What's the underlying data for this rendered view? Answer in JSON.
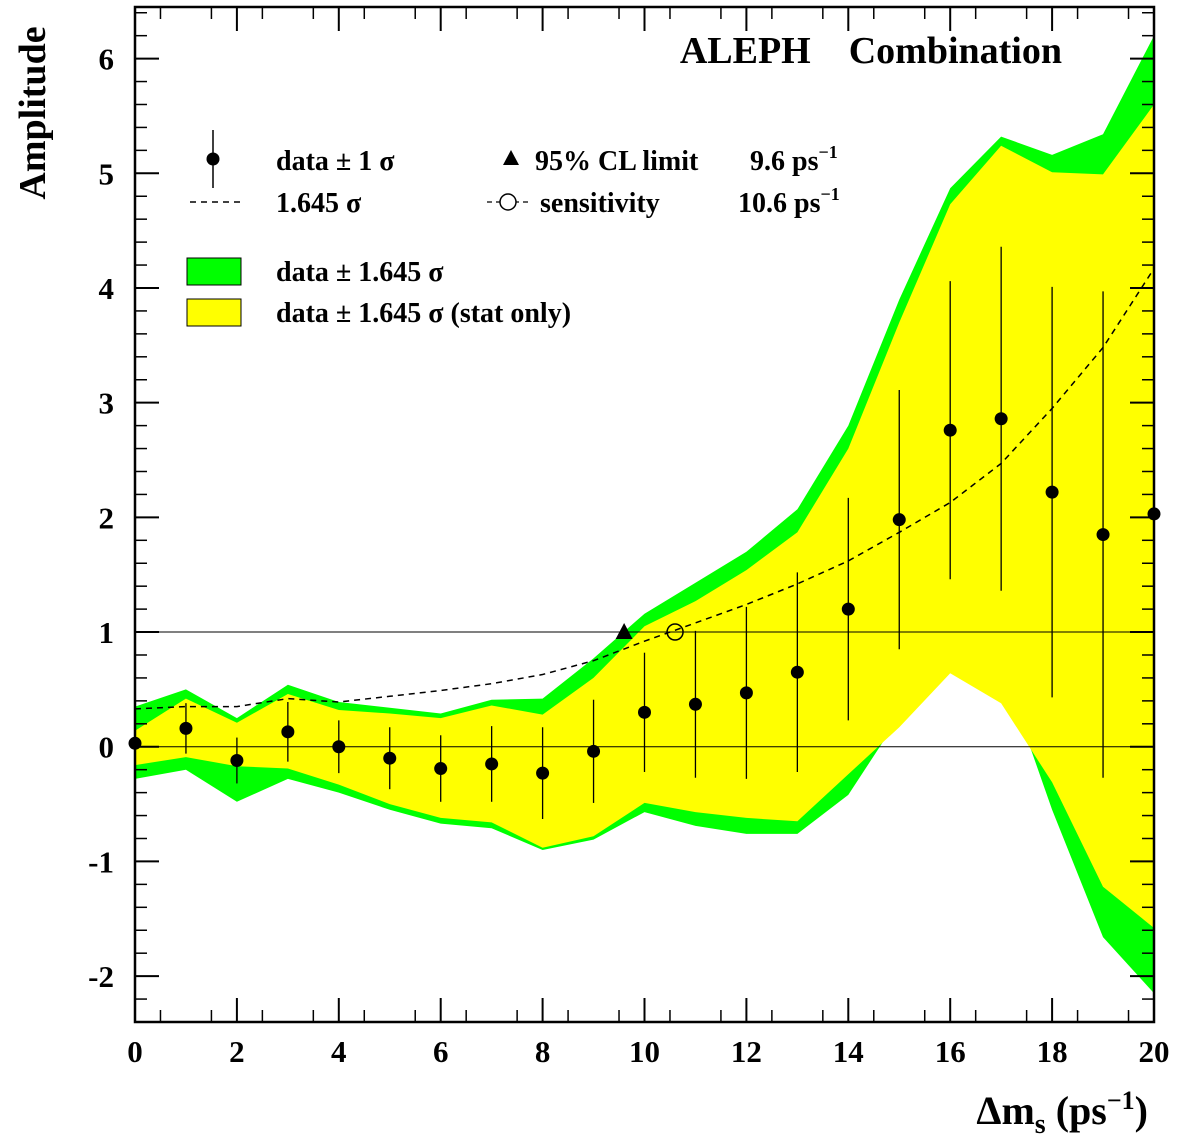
{
  "chart_data": {
    "type": "scatter",
    "title": "ALEPH    Combination",
    "xlabel": "Δm",
    "xlabel_sub": "s",
    "xlabel_unit_open": " (ps",
    "xlabel_unit_sup": "−1",
    "xlabel_unit_close": ")",
    "ylabel": "Amplitude",
    "xlim": [
      0,
      20
    ],
    "ylim": [
      -2.4,
      6.45
    ],
    "x_ticks": [
      0,
      2,
      4,
      6,
      8,
      10,
      12,
      14,
      16,
      18,
      20
    ],
    "x_tick_labels": [
      "0",
      "2",
      "4",
      "6",
      "8",
      "10",
      "12",
      "14",
      "16",
      "18",
      "20"
    ],
    "y_ticks": [
      -2,
      -1,
      0,
      1,
      2,
      3,
      4,
      5,
      6
    ],
    "y_tick_labels": [
      "-2",
      "-1",
      "0",
      "1",
      "2",
      "3",
      "4",
      "5",
      "6"
    ],
    "reference_lines": [
      0,
      1
    ],
    "x": [
      0,
      1,
      2,
      3,
      4,
      5,
      6,
      7,
      8,
      9,
      10,
      11,
      12,
      13,
      14,
      15,
      16,
      17,
      18,
      19,
      20
    ],
    "series": [
      {
        "name": "data ± 1 σ",
        "marker": "filled-circle",
        "values": [
          0.03,
          0.16,
          -0.12,
          0.13,
          0.0,
          -0.1,
          -0.19,
          -0.15,
          -0.23,
          -0.04,
          0.3,
          0.37,
          0.47,
          0.65,
          1.2,
          1.98,
          2.76,
          2.86,
          2.22,
          1.85,
          2.03
        ],
        "error": [
          0.3,
          0.22,
          0.2,
          0.26,
          0.23,
          0.27,
          0.29,
          0.33,
          0.4,
          0.45,
          0.52,
          0.64,
          0.75,
          0.87,
          0.97,
          1.13,
          1.3,
          1.5,
          1.79,
          2.12,
          2.4
        ]
      },
      {
        "name": "1.645 σ",
        "style": "dashed",
        "values": [
          0.33,
          0.35,
          0.35,
          0.42,
          0.39,
          0.44,
          0.49,
          0.55,
          0.63,
          0.75,
          0.92,
          1.08,
          1.24,
          1.42,
          1.62,
          1.87,
          2.13,
          2.47,
          2.95,
          3.48,
          4.17
        ]
      },
      {
        "name": "data ± 1.645 σ",
        "type": "band",
        "color": "#00ff00",
        "upper": [
          0.35,
          0.5,
          0.25,
          0.54,
          0.39,
          0.34,
          0.29,
          0.41,
          0.42,
          0.77,
          1.16,
          1.43,
          1.7,
          2.07,
          2.8,
          3.9,
          4.87,
          5.32,
          5.16,
          5.34,
          6.2
        ],
        "lower": [
          -0.28,
          -0.2,
          -0.48,
          -0.28,
          -0.4,
          -0.55,
          -0.67,
          -0.71,
          -0.9,
          -0.81,
          -0.57,
          -0.69,
          -0.76,
          -0.76,
          -0.42,
          0.26,
          0.9,
          0.72,
          -0.55,
          -1.66,
          -2.15
        ]
      },
      {
        "name": "data ± 1.645 σ (stat only)",
        "type": "band",
        "color": "#ffff00",
        "upper": [
          0.14,
          0.42,
          0.21,
          0.46,
          0.32,
          0.29,
          0.25,
          0.36,
          0.28,
          0.6,
          1.05,
          1.27,
          1.54,
          1.87,
          2.6,
          3.7,
          4.73,
          5.24,
          5.01,
          4.99,
          5.6
        ],
        "lower": [
          -0.16,
          -0.09,
          -0.17,
          -0.19,
          -0.33,
          -0.5,
          -0.62,
          -0.66,
          -0.88,
          -0.78,
          -0.49,
          -0.57,
          -0.62,
          -0.65,
          -0.24,
          0.17,
          0.64,
          0.38,
          -0.31,
          -1.22,
          -1.58
        ]
      }
    ],
    "annotations": [
      {
        "name": "95% CL limit",
        "x": 9.6,
        "y": 1.0,
        "marker": "filled-triangle"
      },
      {
        "name": "sensitivity",
        "x": 10.6,
        "y": 1.0,
        "marker": "open-circle"
      }
    ],
    "grid": false,
    "legend_position": "top-left"
  },
  "legend": {
    "data_label": "data ± 1 σ",
    "sigma_label": "1.645 σ",
    "limit_label": "95% CL limit",
    "limit_value": "9.6 ps",
    "limit_sup": "−1",
    "sens_label": "sensitivity",
    "sens_value": "10.6 ps",
    "sens_sup": "−1",
    "green_label": "data ± 1.645 σ",
    "yellow_label": "data ± 1.645 σ (stat only)"
  },
  "colors": {
    "total_band": "#00ff00",
    "stat_band": "#ffff00",
    "ink": "#000000"
  }
}
